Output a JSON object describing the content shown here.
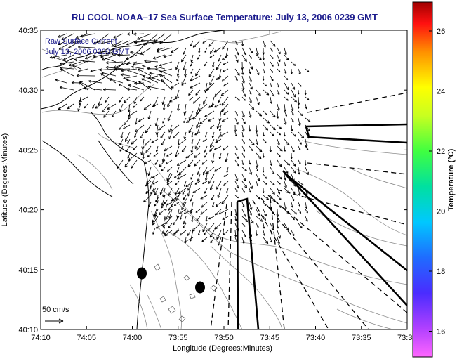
{
  "title": "RU COOL  NOAA–17  Sea Surface Temperature:  July 13, 2006 0239 GMT",
  "xlabel": "Longitude (Degrees:Minutes)",
  "ylabel": "Latitude (Degrees:Minutes)",
  "x_ticks": [
    "74:10",
    "74:05",
    "74:00",
    "73:55",
    "73:50",
    "73:45",
    "73:40",
    "73:35",
    "73:3"
  ],
  "y_ticks": [
    "40:35",
    "40:30",
    "40:25",
    "40:20",
    "40:15",
    "40:10"
  ],
  "annotation_line1": "Raw Surface Current",
  "annotation_line2": "July 13, 2006 0200 GMT",
  "scale_label": "50 cm/s",
  "colorbar": {
    "label": "Temperature (°C)",
    "ticks": [
      "26",
      "24",
      "22",
      "20",
      "18",
      "16"
    ]
  },
  "colors": {
    "title": "#1a1a8c",
    "annotation": "#1a1a8c",
    "coast": "#000000",
    "bathymetry": "#888888"
  }
}
